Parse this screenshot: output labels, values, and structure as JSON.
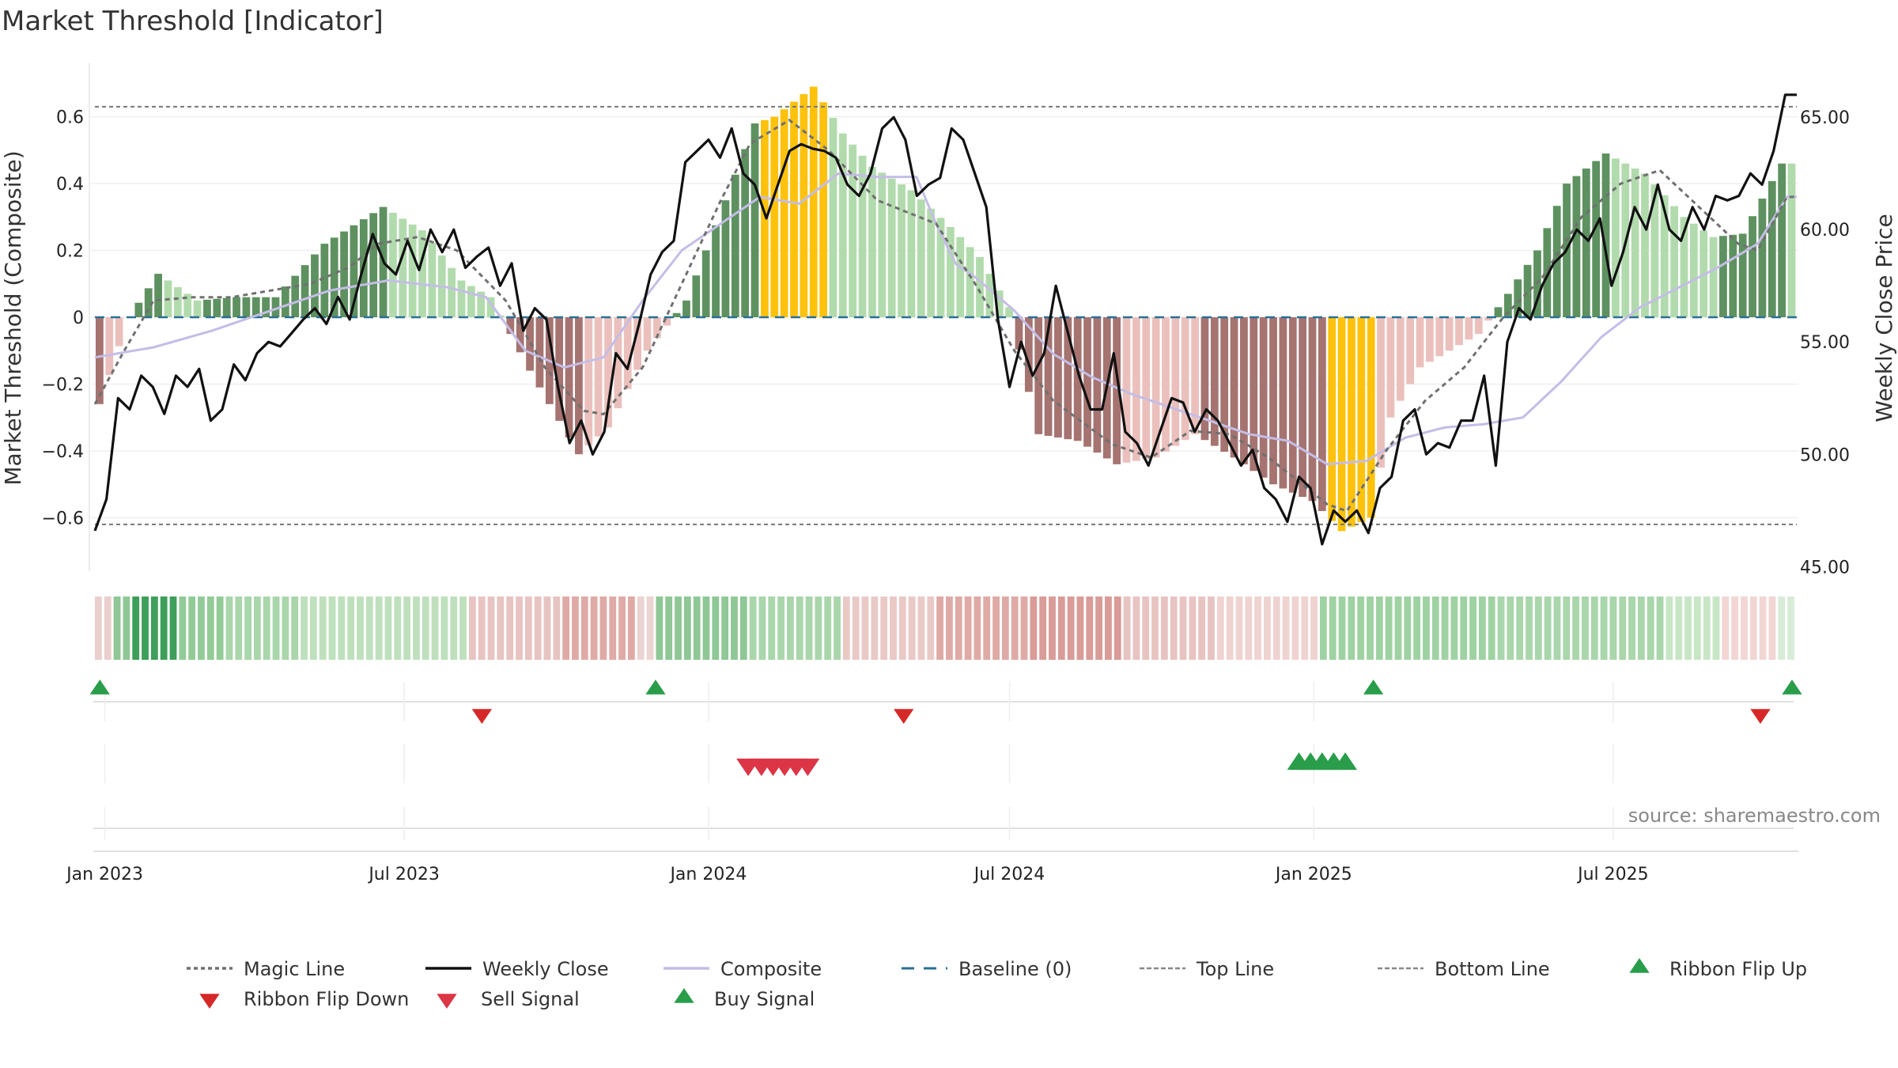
{
  "title": "Market Threshold [Indicator]",
  "source": "source: sharemaestro.com",
  "colors": {
    "pos_strong": "#5e9160",
    "pos_weak": "#b2dbad",
    "neg_strong": "#a57370",
    "neg_weak": "#ebc0bc",
    "extreme": "#fec20c",
    "close": "#111111",
    "composite": "#c4bde6",
    "magic": "#707070",
    "baseline": "#2a6f97",
    "buy": "#2a9d4b",
    "sell": "#dc3545"
  },
  "chart_data": {
    "type": "bar",
    "title": "Market Threshold [Indicator]",
    "ylabel_left": "Market Threshold (Composite)",
    "ylabel_right": "Weekly Close Price",
    "ylim_left": [
      -0.76,
      0.76
    ],
    "ylim_right": [
      44.8,
      67.4
    ],
    "yticks_left": [
      "0.6",
      "0.4",
      "0.2",
      "0",
      "−0.2",
      "−0.4",
      "−0.6"
    ],
    "yticks_left_values": [
      0.6,
      0.4,
      0.2,
      0,
      -0.2,
      -0.4,
      -0.6
    ],
    "yticks_right": [
      "65.00",
      "60.00",
      "55.00",
      "50.00",
      "45.00"
    ],
    "yticks_right_values": [
      65,
      60,
      55,
      50,
      45
    ],
    "x_start": "2022-12-26",
    "x_end": "2025-10-20",
    "x_ticks": [
      "Jan 2023",
      "Jul 2023",
      "Jan 2024",
      "Jul 2024",
      "Jan 2025",
      "Jul 2025"
    ],
    "x_tick_dates": [
      "2023-01-01",
      "2023-07-01",
      "2024-01-01",
      "2024-07-01",
      "2025-01-01",
      "2025-07-01"
    ],
    "top_line": 0.63,
    "bottom_line": -0.62,
    "baseline": 0,
    "bar_anchors": [
      [
        0,
        -0.26
      ],
      [
        3,
        0.0
      ],
      [
        6,
        0.13
      ],
      [
        10,
        0.05
      ],
      [
        14,
        0.06
      ],
      [
        18,
        0.06
      ],
      [
        23,
        0.22
      ],
      [
        29,
        0.33
      ],
      [
        33,
        0.26
      ],
      [
        37,
        0.11
      ],
      [
        40,
        0.06
      ],
      [
        44,
        -0.16
      ],
      [
        49,
        -0.41
      ],
      [
        52,
        -0.33
      ],
      [
        56,
        -0.1
      ],
      [
        60,
        0.05
      ],
      [
        64,
        0.35
      ],
      [
        67,
        0.58
      ],
      [
        69,
        0.6
      ],
      [
        73,
        0.69
      ],
      [
        76,
        0.55
      ],
      [
        79,
        0.45
      ],
      [
        83,
        0.38
      ],
      [
        87,
        0.27
      ],
      [
        90,
        0.18
      ],
      [
        93,
        0.03
      ],
      [
        96,
        -0.35
      ],
      [
        100,
        -0.37
      ],
      [
        104,
        -0.44
      ],
      [
        108,
        -0.42
      ],
      [
        112,
        -0.35
      ],
      [
        116,
        -0.42
      ],
      [
        120,
        -0.5
      ],
      [
        124,
        -0.55
      ],
      [
        127,
        -0.64
      ],
      [
        130,
        -0.6
      ],
      [
        132,
        -0.3
      ],
      [
        135,
        -0.15
      ],
      [
        138,
        -0.1
      ],
      [
        141,
        -0.05
      ],
      [
        144,
        0.07
      ],
      [
        147,
        0.2
      ],
      [
        150,
        0.4
      ],
      [
        154,
        0.49
      ],
      [
        158,
        0.43
      ],
      [
        162,
        0.3
      ],
      [
        165,
        0.24
      ],
      [
        168,
        0.25
      ],
      [
        172,
        0.46
      ]
    ],
    "extreme_ranges": [
      [
        68,
        74
      ],
      [
        126,
        130
      ]
    ],
    "close_anchors": [
      [
        0,
        46.6
      ],
      [
        1,
        48.0
      ],
      [
        2,
        52.5
      ],
      [
        3,
        52.0
      ],
      [
        4,
        53.5
      ],
      [
        5,
        53.0
      ],
      [
        6,
        51.8
      ],
      [
        7,
        53.5
      ],
      [
        8,
        53.0
      ],
      [
        9,
        53.8
      ],
      [
        10,
        51.5
      ],
      [
        11,
        52.0
      ],
      [
        12,
        54.0
      ],
      [
        13,
        53.3
      ],
      [
        14,
        54.5
      ],
      [
        15,
        55.0
      ],
      [
        16,
        54.8
      ],
      [
        17,
        55.4
      ],
      [
        18,
        56.0
      ],
      [
        19,
        56.5
      ],
      [
        20,
        55.8
      ],
      [
        21,
        57.0
      ],
      [
        22,
        56.0
      ],
      [
        23,
        58.0
      ],
      [
        24,
        59.8
      ],
      [
        25,
        58.5
      ],
      [
        26,
        58.0
      ],
      [
        27,
        59.5
      ],
      [
        28,
        58.2
      ],
      [
        29,
        60.0
      ],
      [
        30,
        59.0
      ],
      [
        31,
        60.0
      ],
      [
        32,
        58.3
      ],
      [
        33,
        58.8
      ],
      [
        34,
        59.2
      ],
      [
        35,
        57.5
      ],
      [
        36,
        58.5
      ],
      [
        37,
        55.5
      ],
      [
        38,
        56.5
      ],
      [
        39,
        56.0
      ],
      [
        40,
        53.0
      ],
      [
        41,
        50.5
      ],
      [
        42,
        51.5
      ],
      [
        43,
        50.0
      ],
      [
        44,
        51.0
      ],
      [
        45,
        54.5
      ],
      [
        46,
        53.8
      ],
      [
        47,
        55.8
      ],
      [
        48,
        58.0
      ],
      [
        49,
        59.0
      ],
      [
        50,
        59.5
      ],
      [
        51,
        63.0
      ],
      [
        52,
        63.5
      ],
      [
        53,
        64.0
      ],
      [
        54,
        63.2
      ],
      [
        55,
        64.5
      ],
      [
        56,
        62.5
      ],
      [
        57,
        62.0
      ],
      [
        58,
        60.5
      ],
      [
        59,
        62.0
      ],
      [
        60,
        63.5
      ],
      [
        61,
        63.8
      ],
      [
        62,
        63.6
      ],
      [
        63,
        63.5
      ],
      [
        64,
        63.2
      ],
      [
        65,
        62.0
      ],
      [
        66,
        61.5
      ],
      [
        67,
        62.5
      ],
      [
        68,
        64.5
      ],
      [
        69,
        65.0
      ],
      [
        70,
        64.0
      ],
      [
        71,
        61.5
      ],
      [
        72,
        62.0
      ],
      [
        73,
        62.3
      ],
      [
        74,
        64.5
      ],
      [
        75,
        64.0
      ],
      [
        76,
        62.5
      ],
      [
        77,
        61.0
      ],
      [
        78,
        56.0
      ],
      [
        79,
        53.0
      ],
      [
        80,
        55.0
      ],
      [
        81,
        53.5
      ],
      [
        82,
        54.5
      ],
      [
        83,
        57.5
      ],
      [
        84,
        55.5
      ],
      [
        85,
        53.5
      ],
      [
        86,
        52.0
      ],
      [
        87,
        52.0
      ],
      [
        88,
        54.5
      ],
      [
        89,
        51.0
      ],
      [
        90,
        50.5
      ],
      [
        91,
        49.5
      ],
      [
        92,
        51.0
      ],
      [
        93,
        52.5
      ],
      [
        94,
        52.3
      ],
      [
        95,
        51.0
      ],
      [
        96,
        52.0
      ],
      [
        97,
        51.5
      ],
      [
        98,
        50.5
      ],
      [
        99,
        49.5
      ],
      [
        100,
        50.2
      ],
      [
        101,
        48.5
      ],
      [
        102,
        48.0
      ],
      [
        103,
        47.0
      ],
      [
        104,
        49.0
      ],
      [
        105,
        48.5
      ],
      [
        106,
        46.0
      ],
      [
        107,
        47.5
      ],
      [
        108,
        47.0
      ],
      [
        109,
        47.5
      ],
      [
        110,
        46.5
      ],
      [
        111,
        48.5
      ],
      [
        112,
        49.0
      ],
      [
        113,
        51.5
      ],
      [
        114,
        52.0
      ],
      [
        115,
        50.0
      ],
      [
        116,
        50.5
      ],
      [
        117,
        50.3
      ],
      [
        118,
        51.5
      ],
      [
        119,
        51.5
      ],
      [
        120,
        53.5
      ],
      [
        121,
        49.5
      ],
      [
        122,
        55.0
      ],
      [
        123,
        56.5
      ],
      [
        124,
        56.0
      ],
      [
        125,
        57.5
      ],
      [
        126,
        58.5
      ],
      [
        127,
        59.0
      ],
      [
        128,
        60.0
      ],
      [
        129,
        59.5
      ],
      [
        130,
        60.5
      ],
      [
        131,
        57.5
      ],
      [
        132,
        59.0
      ],
      [
        133,
        61.0
      ],
      [
        134,
        60.0
      ],
      [
        135,
        62.0
      ],
      [
        136,
        60.0
      ],
      [
        137,
        59.5
      ],
      [
        138,
        61.0
      ],
      [
        139,
        60.0
      ],
      [
        140,
        61.5
      ],
      [
        141,
        61.3
      ],
      [
        142,
        61.5
      ],
      [
        143,
        62.5
      ],
      [
        144,
        62.0
      ],
      [
        145,
        63.5
      ],
      [
        146,
        66.0
      ],
      [
        147,
        66.0
      ]
    ],
    "composite_anchors": [
      [
        0,
        -0.12
      ],
      [
        6,
        -0.09
      ],
      [
        12,
        -0.04
      ],
      [
        18,
        0.02
      ],
      [
        24,
        0.08
      ],
      [
        30,
        0.11
      ],
      [
        36,
        0.09
      ],
      [
        40,
        0.06
      ],
      [
        44,
        -0.1
      ],
      [
        48,
        -0.15
      ],
      [
        52,
        -0.12
      ],
      [
        56,
        0.05
      ],
      [
        60,
        0.2
      ],
      [
        64,
        0.28
      ],
      [
        68,
        0.36
      ],
      [
        72,
        0.34
      ],
      [
        76,
        0.43
      ],
      [
        80,
        0.42
      ],
      [
        84,
        0.42
      ],
      [
        86,
        0.28
      ],
      [
        88,
        0.16
      ],
      [
        90,
        0.12
      ],
      [
        94,
        0.02
      ],
      [
        98,
        -0.11
      ],
      [
        102,
        -0.18
      ],
      [
        106,
        -0.23
      ],
      [
        110,
        -0.27
      ],
      [
        114,
        -0.31
      ],
      [
        118,
        -0.35
      ],
      [
        122,
        -0.37
      ],
      [
        126,
        -0.44
      ],
      [
        130,
        -0.43
      ],
      [
        134,
        -0.36
      ],
      [
        138,
        -0.33
      ],
      [
        142,
        -0.32
      ],
      [
        146,
        -0.3
      ],
      [
        150,
        -0.19
      ],
      [
        154,
        -0.06
      ],
      [
        158,
        0.03
      ],
      [
        162,
        0.09
      ],
      [
        166,
        0.15
      ],
      [
        170,
        0.22
      ],
      [
        173,
        0.36
      ]
    ],
    "magic_anchors": [
      [
        0,
        -0.26
      ],
      [
        3,
        -0.1
      ],
      [
        6,
        0.05
      ],
      [
        10,
        0.06
      ],
      [
        14,
        0.06
      ],
      [
        18,
        0.08
      ],
      [
        22,
        0.1
      ],
      [
        26,
        0.15
      ],
      [
        29,
        0.22
      ],
      [
        33,
        0.24
      ],
      [
        37,
        0.2
      ],
      [
        42,
        0.05
      ],
      [
        46,
        -0.15
      ],
      [
        50,
        -0.28
      ],
      [
        52,
        -0.29
      ],
      [
        56,
        -0.15
      ],
      [
        60,
        0.1
      ],
      [
        64,
        0.35
      ],
      [
        67,
        0.52
      ],
      [
        71,
        0.59
      ],
      [
        75,
        0.5
      ],
      [
        80,
        0.35
      ],
      [
        86,
        0.28
      ],
      [
        90,
        0.1
      ],
      [
        94,
        -0.1
      ],
      [
        98,
        -0.25
      ],
      [
        104,
        -0.38
      ],
      [
        108,
        -0.42
      ],
      [
        112,
        -0.34
      ],
      [
        116,
        -0.35
      ],
      [
        120,
        -0.42
      ],
      [
        126,
        -0.56
      ],
      [
        128,
        -0.58
      ],
      [
        132,
        -0.4
      ],
      [
        136,
        -0.25
      ],
      [
        140,
        -0.15
      ],
      [
        144,
        0.0
      ],
      [
        148,
        0.12
      ],
      [
        152,
        0.3
      ],
      [
        156,
        0.4
      ],
      [
        160,
        0.44
      ],
      [
        164,
        0.33
      ],
      [
        168,
        0.22
      ],
      [
        170,
        0.2
      ],
      [
        173,
        0.36
      ]
    ],
    "ribbon_segments": [
      [
        0,
        2,
        "#e9cfcd"
      ],
      [
        2,
        4,
        "#8fc796"
      ],
      [
        4,
        9,
        "#3e9f5a"
      ],
      [
        9,
        14,
        "#92cb97"
      ],
      [
        14,
        22,
        "#a9d6ab"
      ],
      [
        22,
        40,
        "#bfe0bd"
      ],
      [
        40,
        50,
        "#e7c4c1"
      ],
      [
        50,
        58,
        "#dfaaa6"
      ],
      [
        58,
        60,
        "#ebd4d2"
      ],
      [
        60,
        70,
        "#8fc796"
      ],
      [
        70,
        80,
        "#a9d6ab"
      ],
      [
        80,
        90,
        "#e9c9c6"
      ],
      [
        90,
        100,
        "#dfaaa6"
      ],
      [
        100,
        110,
        "#d99c98"
      ],
      [
        110,
        120,
        "#e7c4c1"
      ],
      [
        120,
        131,
        "#efd3d0"
      ],
      [
        131,
        150,
        "#9fd2a2"
      ],
      [
        150,
        168,
        "#a9d6ab"
      ],
      [
        168,
        174,
        "#c8e6c6"
      ],
      [
        174,
        180,
        "#f1d6d4"
      ],
      [
        180,
        182,
        "#d8ebd6"
      ]
    ],
    "ribbon_flip_up": [
      "2022-12-29",
      "2023-11-30",
      "2025-02-06",
      "2025-10-19"
    ],
    "ribbon_flip_down": [
      "2023-08-17",
      "2024-04-28",
      "2025-09-28"
    ],
    "sell_signals": [
      "2024-01-25",
      "2024-02-02",
      "2024-02-09",
      "2024-02-16",
      "2024-02-23",
      "2024-03-01"
    ],
    "buy_signals": [
      "2024-12-23",
      "2024-12-30",
      "2025-01-06",
      "2025-01-13",
      "2025-01-20"
    ],
    "legend": [
      "Magic Line",
      "Weekly Close",
      "Composite",
      "Baseline (0)",
      "Top Line",
      "Bottom Line",
      "Ribbon Flip Up",
      "Ribbon Flip Down",
      "Sell Signal",
      "Buy Signal"
    ]
  }
}
